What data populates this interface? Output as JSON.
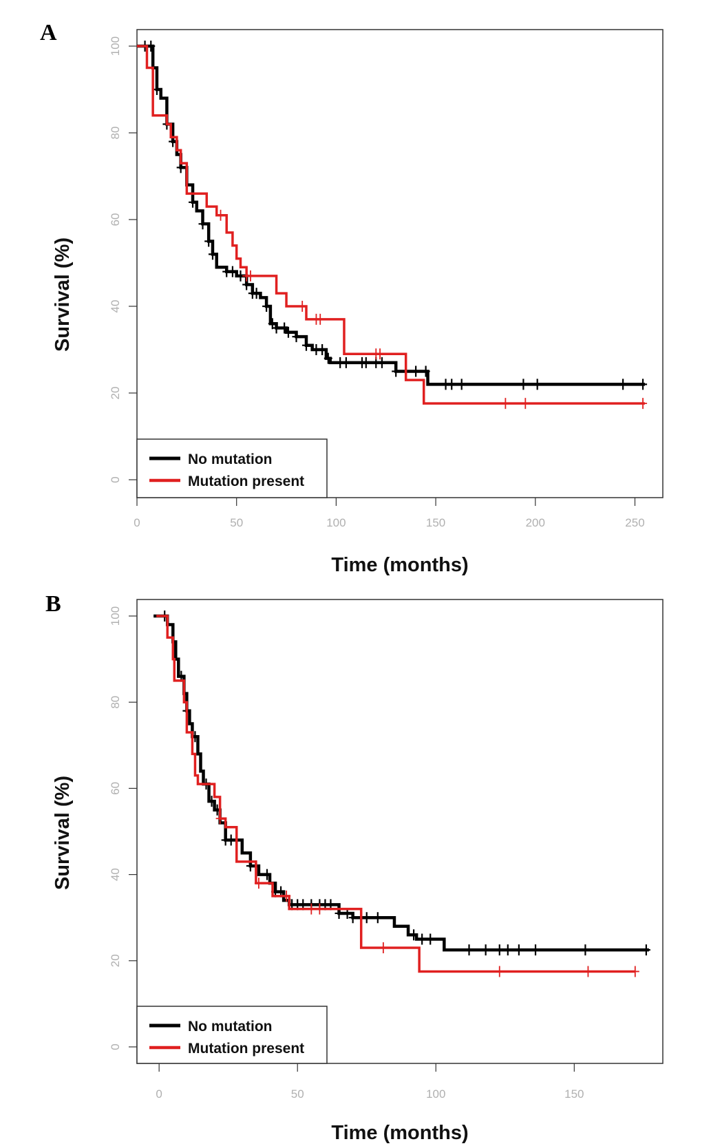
{
  "chart_data": [
    {
      "type": "line",
      "panel_label": "A",
      "title": "",
      "xlabel": "Time (months)",
      "ylabel": "Survival (%)",
      "xlim": [
        0,
        264
      ],
      "ylim": [
        -4,
        104
      ],
      "xticks": [
        0,
        50,
        100,
        150,
        200,
        250
      ],
      "yticks": [
        0,
        20,
        40,
        60,
        80,
        100
      ],
      "grid": false,
      "legend_position": "bottom-left",
      "series": [
        {
          "name": "No mutation",
          "color": "#000000",
          "steps": [
            [
              0,
              100
            ],
            [
              5,
              100
            ],
            [
              8,
              95
            ],
            [
              10,
              90
            ],
            [
              12,
              88
            ],
            [
              15,
              82
            ],
            [
              18,
              78
            ],
            [
              20,
              75
            ],
            [
              22,
              72
            ],
            [
              25,
              68
            ],
            [
              28,
              64
            ],
            [
              30,
              62
            ],
            [
              33,
              59
            ],
            [
              36,
              55
            ],
            [
              38,
              52
            ],
            [
              40,
              49
            ],
            [
              45,
              48
            ],
            [
              50,
              47
            ],
            [
              55,
              45
            ],
            [
              58,
              43
            ],
            [
              62,
              42
            ],
            [
              65,
              40
            ],
            [
              67,
              36
            ],
            [
              70,
              35
            ],
            [
              75,
              34
            ],
            [
              80,
              33
            ],
            [
              85,
              31
            ],
            [
              88,
              30
            ],
            [
              95,
              28
            ],
            [
              97,
              27
            ],
            [
              130,
              25
            ],
            [
              146,
              22
            ],
            [
              255,
              22
            ]
          ],
          "censored": [
            4,
            7,
            10,
            15,
            18,
            22,
            28,
            33,
            36,
            38,
            45,
            48,
            52,
            55,
            58,
            60,
            65,
            68,
            70,
            74,
            76,
            80,
            85,
            90,
            93,
            96,
            102,
            105,
            113,
            115,
            120,
            123,
            130,
            135,
            140,
            145,
            155,
            158,
            163,
            194,
            201,
            244,
            254
          ]
        },
        {
          "name": "Mutation present",
          "color": "#e02020",
          "steps": [
            [
              0,
              100
            ],
            [
              3,
              100
            ],
            [
              5,
              95
            ],
            [
              8,
              84
            ],
            [
              14,
              84
            ],
            [
              15,
              82
            ],
            [
              17,
              79
            ],
            [
              20,
              76
            ],
            [
              22,
              73
            ],
            [
              25,
              66
            ],
            [
              32,
              66
            ],
            [
              35,
              63
            ],
            [
              40,
              61
            ],
            [
              45,
              57
            ],
            [
              48,
              54
            ],
            [
              50,
              51
            ],
            [
              52,
              49
            ],
            [
              55,
              47
            ],
            [
              67,
              47
            ],
            [
              70,
              43
            ],
            [
              75,
              40
            ],
            [
              84,
              40
            ],
            [
              85,
              37
            ],
            [
              103,
              37
            ],
            [
              104,
              29
            ],
            [
              134,
              29
            ],
            [
              135,
              23
            ],
            [
              143,
              23
            ],
            [
              144,
              17.6
            ],
            [
              255,
              17.6
            ]
          ],
          "censored": [
            42,
            55,
            57,
            83,
            90,
            92,
            120,
            122,
            185,
            195,
            254
          ]
        }
      ]
    },
    {
      "type": "line",
      "panel_label": "B",
      "title": "",
      "xlabel": "Time (months)",
      "ylabel": "Survival (%)",
      "xlim": [
        -8,
        182
      ],
      "ylim": [
        -4,
        104
      ],
      "xticks": [
        0,
        50,
        100,
        150
      ],
      "yticks": [
        0,
        20,
        40,
        60,
        80,
        100
      ],
      "grid": false,
      "legend_position": "bottom-left",
      "series": [
        {
          "name": "No mutation",
          "color": "#000000",
          "steps": [
            [
              -2,
              100
            ],
            [
              2,
              100
            ],
            [
              3,
              98
            ],
            [
              5,
              94
            ],
            [
              6,
              90
            ],
            [
              7,
              86
            ],
            [
              9,
              82
            ],
            [
              10,
              78
            ],
            [
              11,
              75
            ],
            [
              12,
              72
            ],
            [
              14,
              68
            ],
            [
              15,
              64
            ],
            [
              16,
              61
            ],
            [
              18,
              57
            ],
            [
              20,
              55
            ],
            [
              22,
              52
            ],
            [
              24,
              48
            ],
            [
              27,
              48
            ],
            [
              30,
              45
            ],
            [
              33,
              42
            ],
            [
              36,
              40
            ],
            [
              40,
              38
            ],
            [
              42,
              36
            ],
            [
              45,
              34
            ],
            [
              47,
              33
            ],
            [
              65,
              31
            ],
            [
              70,
              30
            ],
            [
              85,
              28
            ],
            [
              90,
              26
            ],
            [
              93,
              25
            ],
            [
              103,
              22.5
            ],
            [
              177,
              22.5
            ]
          ],
          "censored": [
            2,
            8,
            10,
            13,
            17,
            19,
            21,
            24,
            26,
            33,
            35,
            39,
            42,
            44,
            48,
            50,
            52,
            55,
            58,
            60,
            62,
            65,
            68,
            70,
            75,
            79,
            92,
            95,
            98,
            112,
            118,
            123,
            126,
            130,
            136,
            154,
            176
          ]
        },
        {
          "name": "Mutation present",
          "color": "#e02020",
          "steps": [
            [
              -1,
              100
            ],
            [
              2,
              100
            ],
            [
              3,
              95
            ],
            [
              5,
              90
            ],
            [
              5.5,
              85
            ],
            [
              8,
              85
            ],
            [
              9,
              80
            ],
            [
              10,
              73
            ],
            [
              12,
              68
            ],
            [
              13,
              63
            ],
            [
              14,
              61
            ],
            [
              19,
              61
            ],
            [
              20,
              58
            ],
            [
              22,
              53
            ],
            [
              24,
              51
            ],
            [
              27,
              51
            ],
            [
              28,
              43
            ],
            [
              34,
              43
            ],
            [
              35,
              38
            ],
            [
              40,
              38
            ],
            [
              41,
              35
            ],
            [
              46,
              35
            ],
            [
              47,
              32
            ],
            [
              72,
              32
            ],
            [
              73,
              23
            ],
            [
              93,
              23
            ],
            [
              94,
              17.5
            ],
            [
              172,
              17.5
            ]
          ],
          "censored": [
            22,
            36,
            46,
            55,
            58,
            81,
            123,
            155,
            172
          ]
        }
      ]
    }
  ]
}
